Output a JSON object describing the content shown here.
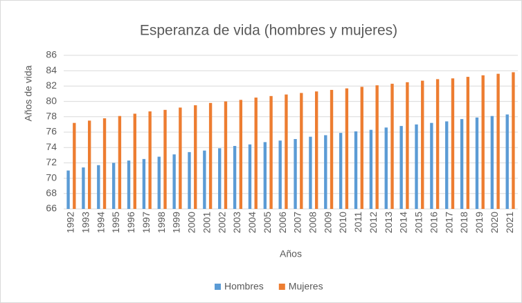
{
  "chart_data": {
    "type": "bar",
    "title": "Esperanza de vida (hombres y mujeres)",
    "x_label": "Años",
    "y_label": "Años de vida",
    "categories": [
      "1992",
      "1993",
      "1994",
      "1995",
      "1996",
      "1997",
      "1998",
      "1999",
      "2000",
      "2001",
      "2002",
      "2003",
      "2004",
      "2005",
      "2006",
      "2007",
      "2008",
      "2009",
      "2010",
      "2011",
      "2012",
      "2013",
      "2014",
      "2015",
      "2016",
      "2017",
      "2018",
      "2019",
      "2020",
      "2021"
    ],
    "series": [
      {
        "name": "Hombres",
        "color": "#5b9bd5",
        "values": [
          71.0,
          71.4,
          71.7,
          72.0,
          72.3,
          72.5,
          72.8,
          73.1,
          73.4,
          73.6,
          73.9,
          74.2,
          74.4,
          74.7,
          74.9,
          75.1,
          75.4,
          75.6,
          75.9,
          76.1,
          76.3,
          76.6,
          76.8,
          77.0,
          77.2,
          77.4,
          77.7,
          77.9,
          78.1,
          78.3
        ]
      },
      {
        "name": "Mujeres",
        "color": "#ed7d31",
        "values": [
          77.2,
          77.5,
          77.8,
          78.1,
          78.4,
          78.7,
          78.9,
          79.2,
          79.5,
          79.8,
          80.0,
          80.2,
          80.5,
          80.7,
          80.9,
          81.1,
          81.3,
          81.5,
          81.7,
          81.9,
          82.1,
          82.3,
          82.5,
          82.7,
          82.9,
          83.0,
          83.2,
          83.4,
          83.6,
          83.8
        ]
      }
    ],
    "ylim": [
      66,
      86
    ],
    "yticks": [
      66,
      68,
      70,
      72,
      74,
      76,
      78,
      80,
      82,
      84,
      86
    ],
    "grid": true,
    "legend": "bottom"
  }
}
